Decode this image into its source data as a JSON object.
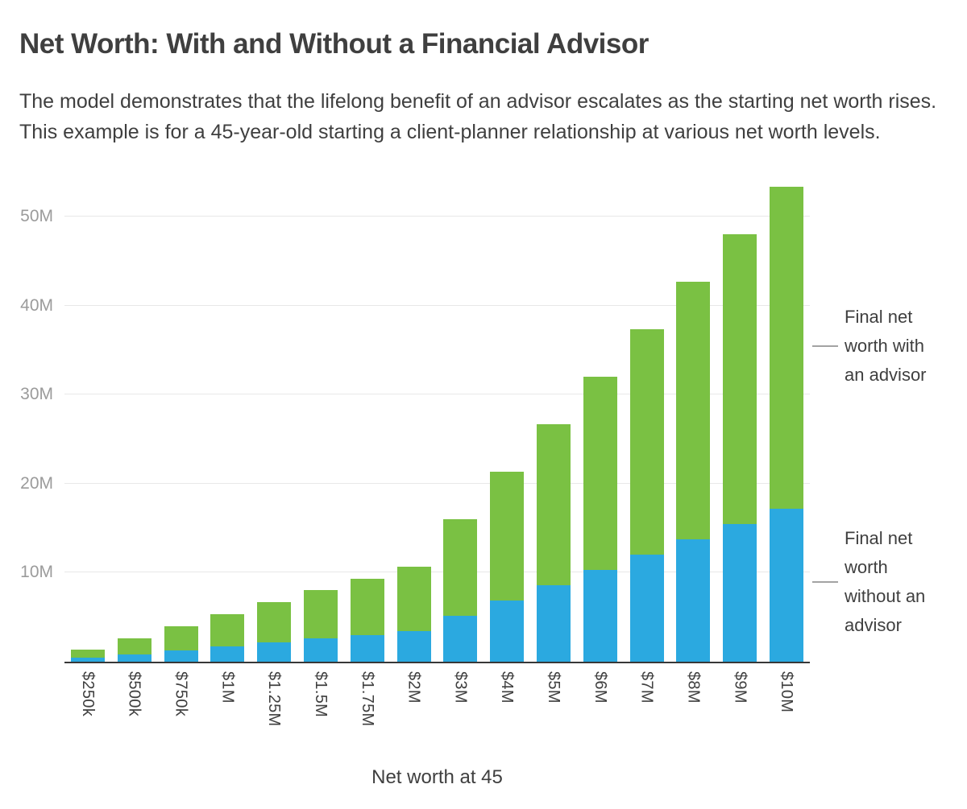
{
  "header": {
    "title": "Net Worth: With and Without a Financial Advisor",
    "subtitle": "The model demonstrates that the lifelong benefit of an advisor escalates as the starting net worth rises. This example is for a 45-year-old starting a client-planner relationship at various net worth levels."
  },
  "chart_data": {
    "type": "bar",
    "stacked": true,
    "title": "Net Worth: With and Without a Financial Advisor",
    "xlabel": "Net worth at 45",
    "ylabel": "",
    "unit": "USD millions",
    "ylim": [
      0,
      54
    ],
    "grid": true,
    "legend_position": "right-annotations",
    "categories": [
      "$250k",
      "$500k",
      "$750k",
      "$1M",
      "$1.25M",
      "$1.5M",
      "$1.75M",
      "$2M",
      "$3M",
      "$4M",
      "$5M",
      "$6M",
      "$7M",
      "$8M",
      "$9M",
      "$10M"
    ],
    "yticks": [
      {
        "value": 10,
        "label": "10M"
      },
      {
        "value": 20,
        "label": "20M"
      },
      {
        "value": 30,
        "label": "30M"
      },
      {
        "value": 40,
        "label": "40M"
      },
      {
        "value": 50,
        "label": "50M"
      }
    ],
    "series": [
      {
        "name": "Final net worth without an advisor",
        "color": "#2BA9E0",
        "values": [
          0.43,
          0.86,
          1.29,
          1.72,
          2.15,
          2.58,
          3.01,
          3.44,
          5.16,
          6.88,
          8.6,
          10.32,
          12.04,
          13.76,
          15.48,
          17.2
        ]
      },
      {
        "name": "Final net worth with an advisor",
        "color": "#7AC143",
        "values": [
          1.34,
          2.67,
          4.01,
          5.34,
          6.68,
          8.01,
          9.35,
          10.68,
          16.02,
          21.36,
          26.7,
          32.04,
          37.38,
          42.72,
          48.06,
          53.4
        ]
      }
    ],
    "stacking_note": "Blue segment = final net worth without an advisor; green segment height = with-advisor total minus without-advisor value; full bar height = final net worth with an advisor.",
    "annotations": [
      {
        "text": "Final net\nworth with\nan advisor",
        "y": 35.5,
        "series_color": "#7AC143"
      },
      {
        "text": "Final net\nworth\nwithout an\nadvisor",
        "y": 9.0,
        "series_color": "#2BA9E0"
      }
    ]
  }
}
